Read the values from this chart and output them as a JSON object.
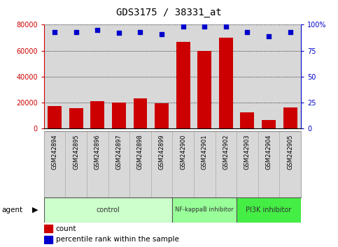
{
  "title": "GDS3175 / 38331_at",
  "samples": [
    "GSM242894",
    "GSM242895",
    "GSM242896",
    "GSM242897",
    "GSM242898",
    "GSM242899",
    "GSM242900",
    "GSM242901",
    "GSM242902",
    "GSM242903",
    "GSM242904",
    "GSM242905"
  ],
  "counts": [
    17000,
    15500,
    21000,
    20000,
    23000,
    19500,
    67000,
    60000,
    70000,
    12500,
    6500,
    16000
  ],
  "percentile_ranks": [
    93,
    93,
    95,
    92,
    93,
    91,
    98,
    98,
    98,
    93,
    89,
    93
  ],
  "bar_color": "#cc0000",
  "dot_color": "#0000cc",
  "ylim_left": [
    0,
    80000
  ],
  "ylim_right": [
    0,
    100
  ],
  "yticks_left": [
    0,
    20000,
    40000,
    60000,
    80000
  ],
  "ytick_labels_left": [
    "0",
    "20000",
    "40000",
    "60000",
    "80000"
  ],
  "yticks_right": [
    0,
    25,
    50,
    75,
    100
  ],
  "ytick_labels_right": [
    "0",
    "25",
    "50",
    "75",
    "100%"
  ],
  "groups": [
    {
      "label": "control",
      "start": 0,
      "end": 5,
      "color": "#ccffcc"
    },
    {
      "label": "NF-kappaB inhibitor",
      "start": 6,
      "end": 8,
      "color": "#99ff99"
    },
    {
      "label": "PI3K inhibitor",
      "start": 9,
      "end": 11,
      "color": "#44ee44"
    }
  ],
  "agent_label": "agent",
  "legend_count_label": "count",
  "legend_pct_label": "percentile rank within the sample",
  "bg_color": "#ffffff",
  "plot_bg_color": "#d8d8d8",
  "title_color": "#000000",
  "left_axis_color": "#cc0000",
  "right_axis_color": "#0000cc"
}
